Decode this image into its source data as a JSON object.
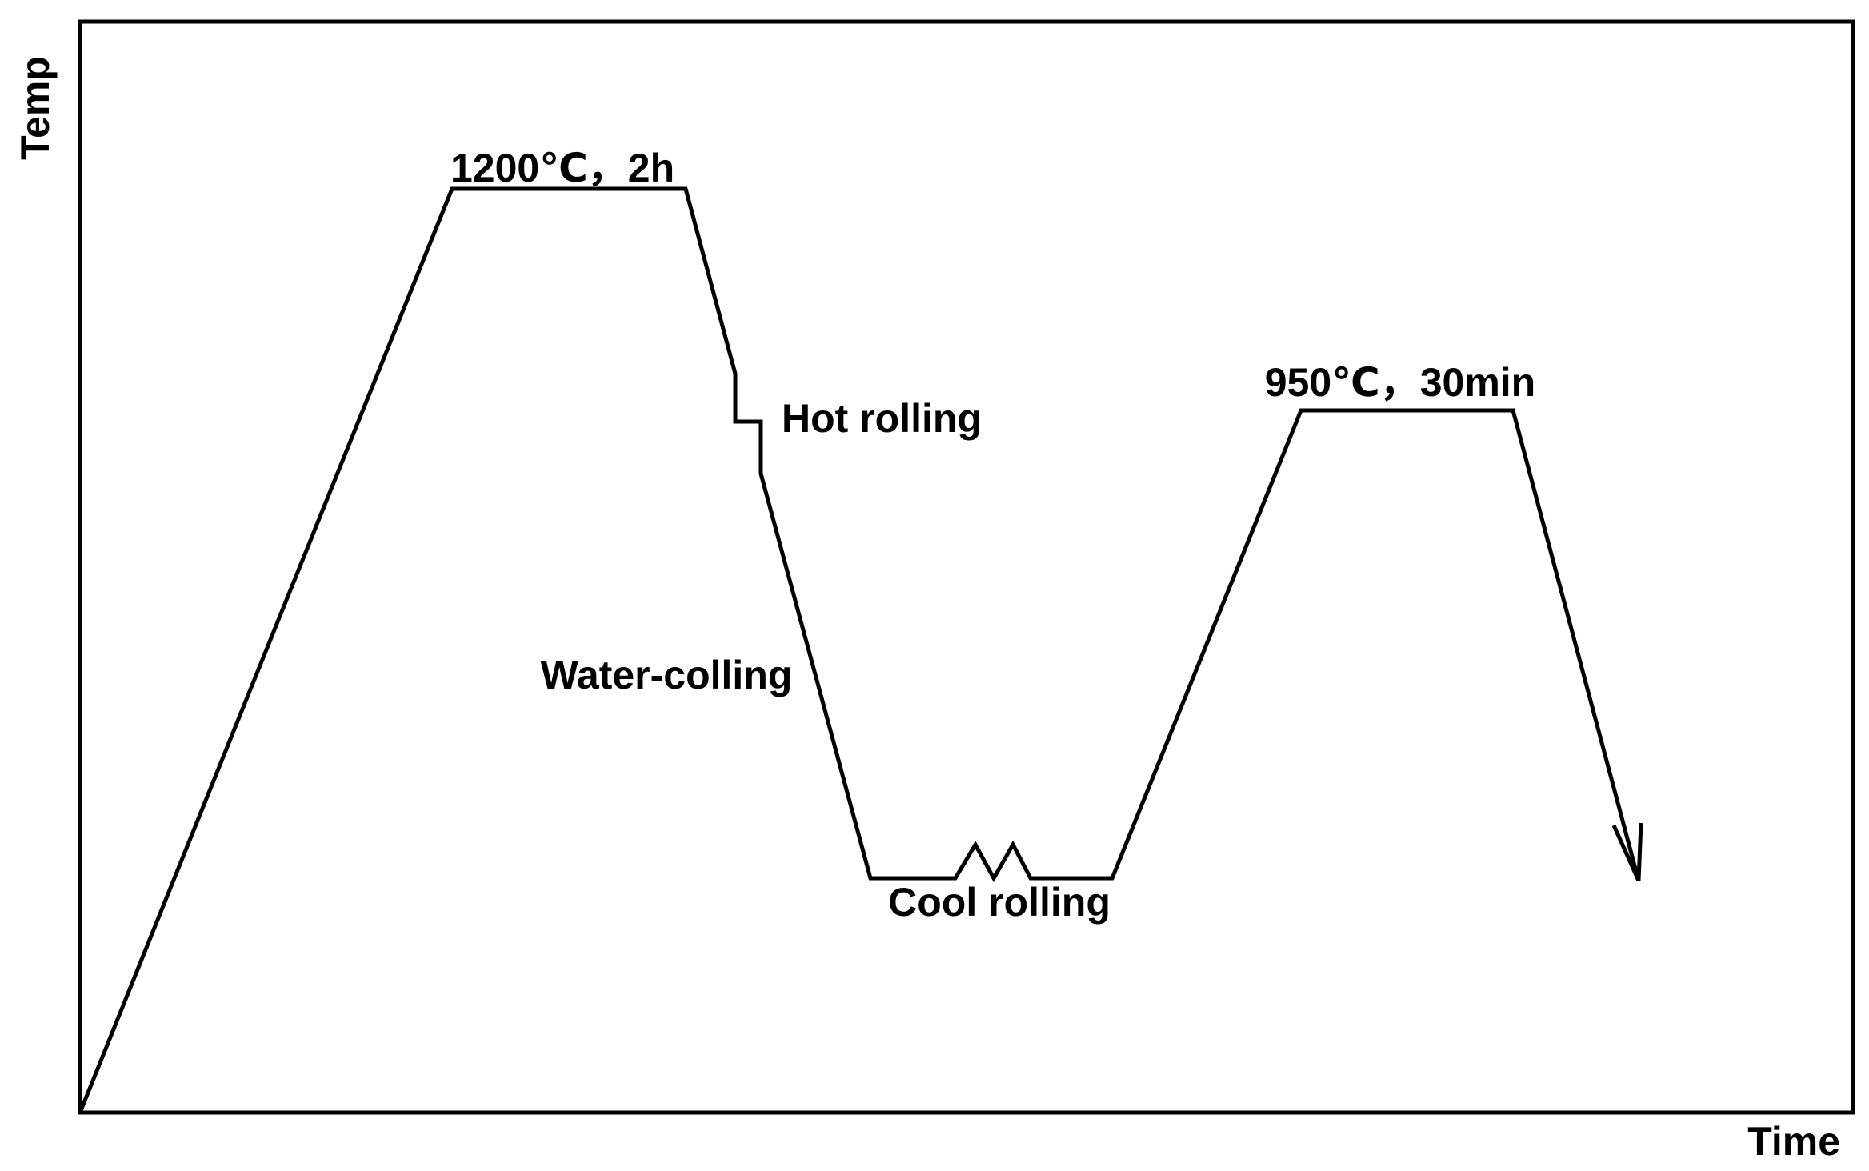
{
  "axes": {
    "y_label": "Temp",
    "x_label": "Time"
  },
  "annotations": {
    "soak_1": "1200℃，2h",
    "hot_rolling": "Hot rolling",
    "water_cooling": "Water-colling",
    "cool_rolling": "Cool rolling",
    "soak_2": "950℃，30min"
  }
}
